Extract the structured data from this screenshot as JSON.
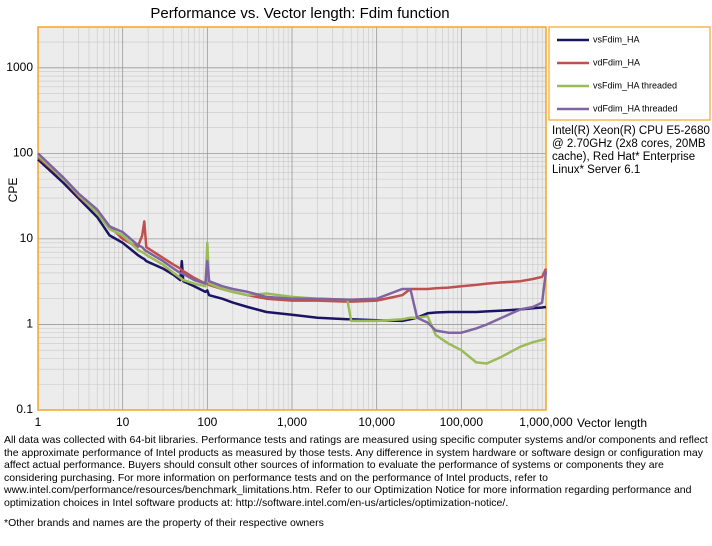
{
  "chart_data": {
    "type": "line",
    "title": "Performance vs. Vector length: Fdim function",
    "xlabel": "Vector length",
    "ylabel": "CPE",
    "xscale": "log",
    "yscale": "log",
    "grid": true,
    "minor_grid": true,
    "legend_position": "right",
    "annotation": "Intel(R) Xeon(R) CPU E5-2680 @ 2.70GHz (2x8 cores, 20MB cache), Red Hat* Enterprise Linux* Server 6.1",
    "footnote": "All data was collected with 64-bit libraries. Performance tests and ratings are measured using specific computer systems and/or components and reflect the approximate performance of Intel products as measured by those tests. Any difference in system hardware or software design or configuration may affect actual performance. Buyers should consult other sources of information to evaluate the performance of systems or components they are considering purchasing. For more information on performance tests and on the performance of Intel products, refer to www.intel.com/performance/resources/benchmark_limitations.htm. Refer to our Optimization Notice for more information regarding performance and optimization choices in Intel software products at: http://software.intel.com/en-us/articles/optimization-notice/.",
    "footnote2": "*Other brands and names are the property of their respective owners",
    "xlim": [
      1,
      1000000
    ],
    "ylim": [
      0.1,
      3000
    ],
    "xticks": [
      1,
      10,
      100,
      {
        "value": 1000,
        "label": "1,000"
      },
      {
        "value": 10000,
        "label": "10,000"
      },
      {
        "value": 100000,
        "label": "100,000"
      },
      {
        "value": 1000000,
        "label": "1,000,000"
      }
    ],
    "yticks": [
      0.1,
      1,
      10,
      100,
      1000
    ],
    "x": [
      1,
      2,
      3,
      5,
      7,
      10,
      15,
      17,
      18,
      19,
      30,
      40,
      48,
      50,
      52,
      70,
      95,
      100,
      105,
      150,
      200,
      300,
      500,
      1000,
      2000,
      4500,
      5000,
      10000,
      20000,
      25000,
      30000,
      40000,
      50000,
      70000,
      100000,
      150000,
      200000,
      300000,
      500000,
      700000,
      900000,
      1000000
    ],
    "series": [
      {
        "name": "vsFdim_HA",
        "color": "#1b1464",
        "values": [
          85,
          45,
          30,
          18,
          11,
          9,
          6.5,
          6,
          5.8,
          5.5,
          4.5,
          3.8,
          3.3,
          5.5,
          3.2,
          2.8,
          2.4,
          2.5,
          2.2,
          2.0,
          1.8,
          1.6,
          1.4,
          1.3,
          1.2,
          1.15,
          1.15,
          1.12,
          1.1,
          1.15,
          1.2,
          1.35,
          1.38,
          1.4,
          1.4,
          1.4,
          1.42,
          1.45,
          1.5,
          1.55,
          1.58,
          1.6
        ]
      },
      {
        "name": "vdFdim_HA",
        "color": "#c0504d",
        "values": [
          90,
          50,
          32,
          20,
          14,
          10,
          8,
          11,
          16,
          8,
          6,
          5,
          4.5,
          4.3,
          4.2,
          3.5,
          3,
          3,
          2.9,
          2.6,
          2.4,
          2.2,
          2.0,
          1.9,
          1.9,
          1.85,
          1.85,
          1.9,
          2.2,
          2.6,
          2.6,
          2.6,
          2.65,
          2.7,
          2.8,
          2.9,
          3.0,
          3.1,
          3.2,
          3.4,
          3.6,
          4.5
        ]
      },
      {
        "name": "vsFdim_HA threaded",
        "color": "#9bbb59",
        "values": [
          95,
          50,
          33,
          20,
          13,
          11,
          7.5,
          7,
          6.8,
          6.5,
          5,
          4,
          3.5,
          3.4,
          3.3,
          3,
          2.8,
          9,
          3,
          2.6,
          2.4,
          2.2,
          2.3,
          2.1,
          2.0,
          1.95,
          1.1,
          1.1,
          1.15,
          1.2,
          1.2,
          1.25,
          0.75,
          0.6,
          0.5,
          0.36,
          0.35,
          0.42,
          0.55,
          0.62,
          0.66,
          0.68
        ]
      },
      {
        "name": "vdFdim_HA threaded",
        "color": "#8064a2",
        "values": [
          100,
          52,
          34,
          22,
          14,
          12,
          8.5,
          8,
          7.5,
          7.2,
          5.5,
          4.5,
          4,
          4,
          3.9,
          3.3,
          3,
          5.5,
          3.2,
          2.8,
          2.6,
          2.4,
          2.1,
          2.0,
          2.0,
          1.95,
          1.95,
          2.0,
          2.6,
          2.6,
          1.2,
          1.05,
          0.85,
          0.8,
          0.8,
          0.9,
          1.0,
          1.2,
          1.5,
          1.6,
          1.8,
          4.2
        ]
      }
    ]
  }
}
